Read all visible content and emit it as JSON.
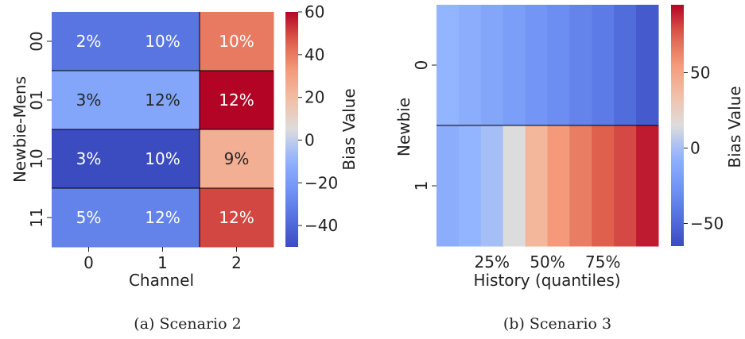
{
  "chart_data": [
    {
      "type": "heatmap",
      "caption": "(a) Scenario 2",
      "xlabel": "Channel",
      "ylabel": "Newbie-Mens",
      "x_categories": [
        "0",
        "1",
        "2"
      ],
      "y_categories": [
        "00",
        "01",
        "10",
        "11"
      ],
      "values": [
        [
          -35,
          -35,
          40
        ],
        [
          -15,
          -15,
          60
        ],
        [
          -50,
          -50,
          25
        ],
        [
          -30,
          -30,
          50
        ]
      ],
      "cell_labels": [
        [
          "2%",
          "10%",
          "10%"
        ],
        [
          "3%",
          "12%",
          "12%"
        ],
        [
          "3%",
          "10%",
          "9%"
        ],
        [
          "5%",
          "12%",
          "12%"
        ]
      ],
      "colorbar": {
        "label": "Bias Value",
        "min": -50,
        "max": 60,
        "ticks": [
          -40,
          -20,
          0,
          20,
          40,
          60
        ]
      }
    },
    {
      "type": "heatmap",
      "caption": "(b) Scenario 3",
      "xlabel": "History (quantiles)",
      "ylabel": "Newbie",
      "x_tick_labels": [
        "25%",
        "50%",
        "75%"
      ],
      "y_categories": [
        "0",
        "1"
      ],
      "values": [
        [
          -5,
          -10,
          -15,
          -20,
          -25,
          -30,
          -35,
          -40,
          -48,
          -57
        ],
        [
          -10,
          -5,
          0,
          15,
          40,
          55,
          65,
          75,
          80,
          90
        ]
      ],
      "colorbar": {
        "label": "Bias Value",
        "min": -65,
        "max": 95,
        "ticks": [
          -50,
          0,
          50
        ]
      }
    }
  ]
}
